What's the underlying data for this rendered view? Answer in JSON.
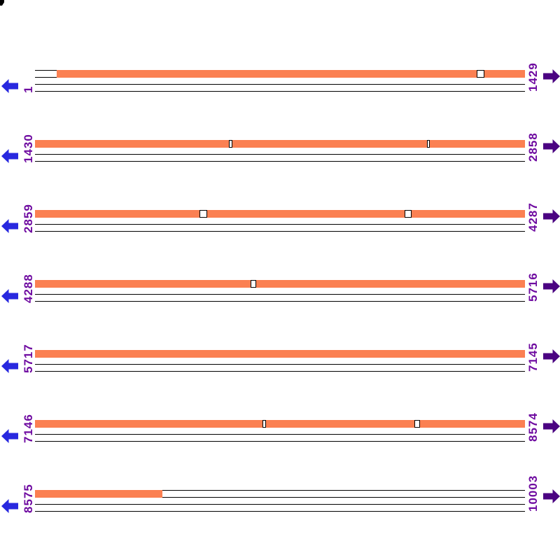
{
  "style": {
    "background": "#FFFFFF",
    "bar_color": "#FB8052",
    "line_color": "#000000",
    "label_color": "#6E0AA0",
    "left_arrow_color": "#2828DF",
    "right_arrow_color": "#4B0382",
    "gap_fill": "#FFFFFF",
    "gap_border": "#000000",
    "corner_mark_color": "#000000"
  },
  "icons": {
    "left": "arrow-left-icon",
    "right": "arrow-right-icon"
  },
  "chart_data": {
    "type": "sequence-coverage-plot",
    "title": "",
    "orientation": "horizontal-wrapped",
    "total_range": [
      1,
      10003
    ],
    "bases_per_row": 1429,
    "lines_per_track": 4,
    "left_labels": [
      "1",
      "1430",
      "2859",
      "4288",
      "5717",
      "7146",
      "8575"
    ],
    "right_labels": [
      "1429",
      "2858",
      "4287",
      "5716",
      "7145",
      "8574",
      "10003"
    ],
    "rows": [
      {
        "start": 1,
        "end": 1429,
        "bar_from": 64,
        "bar_to": 1429,
        "gaps": [
          [
            1289,
            1310
          ]
        ]
      },
      {
        "start": 1430,
        "end": 2858,
        "bar_from": 1430,
        "bar_to": 2858,
        "gaps": [
          [
            1995,
            2006
          ],
          [
            2573,
            2581
          ]
        ]
      },
      {
        "start": 2859,
        "end": 4287,
        "bar_from": 2859,
        "bar_to": 4287,
        "gaps": [
          [
            3339,
            3361
          ],
          [
            3935,
            3957
          ]
        ]
      },
      {
        "start": 4288,
        "end": 5716,
        "bar_from": 4288,
        "bar_to": 5716,
        "gaps": [
          [
            4917,
            4933
          ]
        ]
      },
      {
        "start": 5717,
        "end": 7145,
        "bar_from": 5717,
        "bar_to": 7145,
        "gaps": []
      },
      {
        "start": 7146,
        "end": 8574,
        "bar_from": 7146,
        "bar_to": 8574,
        "gaps": [
          [
            7809,
            7820
          ],
          [
            8252,
            8269
          ]
        ]
      },
      {
        "start": 8575,
        "end": 10003,
        "bar_from": 8575,
        "bar_to": 8946,
        "gaps": []
      }
    ]
  }
}
